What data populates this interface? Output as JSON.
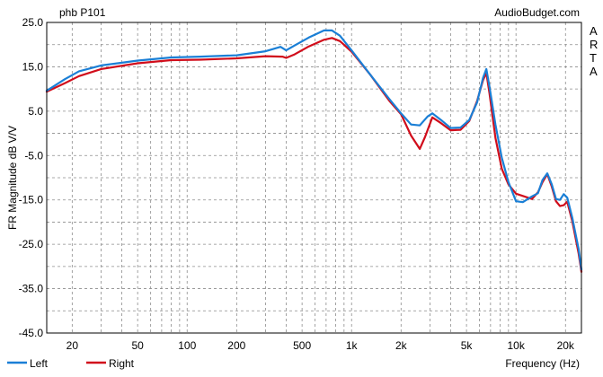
{
  "header": {
    "left": "phb P101",
    "right": "AudioBudget.com"
  },
  "side_label": "ARTA",
  "chart_data": {
    "type": "line",
    "title": "",
    "xlabel": "Frequency (Hz)",
    "ylabel": "FR Magnitude dB V/V",
    "xscale": "log",
    "xlim": [
      14,
      25000
    ],
    "ylim": [
      -45,
      25
    ],
    "grid": true,
    "legend": "bottom-left",
    "x_ticks": [
      {
        "v": 20,
        "label": "20"
      },
      {
        "v": 50,
        "label": "50"
      },
      {
        "v": 100,
        "label": "100"
      },
      {
        "v": 200,
        "label": "200"
      },
      {
        "v": 500,
        "label": "500"
      },
      {
        "v": 1000,
        "label": "1k"
      },
      {
        "v": 2000,
        "label": "2k"
      },
      {
        "v": 5000,
        "label": "5k"
      },
      {
        "v": 10000,
        "label": "10k"
      },
      {
        "v": 20000,
        "label": "20k"
      }
    ],
    "y_ticks": [
      {
        "v": 25,
        "label": "25.0"
      },
      {
        "v": 15,
        "label": "15.0"
      },
      {
        "v": 5,
        "label": "5.0"
      },
      {
        "v": -5,
        "label": "-5.0"
      },
      {
        "v": -15,
        "label": "-15.0"
      },
      {
        "v": -25,
        "label": "-25.0"
      },
      {
        "v": -35,
        "label": "-35.0"
      },
      {
        "v": -45,
        "label": "-45.0"
      }
    ],
    "series": [
      {
        "name": "Left",
        "color": "#1a7fd6",
        "points": [
          [
            14,
            9.6
          ],
          [
            18,
            12.2
          ],
          [
            22,
            14
          ],
          [
            30,
            15.3
          ],
          [
            50,
            16.4
          ],
          [
            80,
            17.1
          ],
          [
            120,
            17.3
          ],
          [
            200,
            17.6
          ],
          [
            300,
            18.5
          ],
          [
            370,
            19.5
          ],
          [
            400,
            18.7
          ],
          [
            450,
            19.8
          ],
          [
            550,
            21.6
          ],
          [
            680,
            23.2
          ],
          [
            760,
            23.2
          ],
          [
            850,
            22
          ],
          [
            1000,
            18.7
          ],
          [
            1300,
            13.2
          ],
          [
            1700,
            7.7
          ],
          [
            2000,
            4.5
          ],
          [
            2300,
            2
          ],
          [
            2600,
            1.8
          ],
          [
            2900,
            3.8
          ],
          [
            3100,
            4.5
          ],
          [
            3500,
            3
          ],
          [
            4000,
            1.2
          ],
          [
            4600,
            1.3
          ],
          [
            5200,
            3
          ],
          [
            5800,
            7
          ],
          [
            6300,
            12.5
          ],
          [
            6600,
            14.5
          ],
          [
            6900,
            10.5
          ],
          [
            7500,
            2
          ],
          [
            8200,
            -5.5
          ],
          [
            9000,
            -11
          ],
          [
            10000,
            -15.3
          ],
          [
            11000,
            -15.5
          ],
          [
            12500,
            -14.2
          ],
          [
            13600,
            -13.5
          ],
          [
            14500,
            -10.5
          ],
          [
            15500,
            -9
          ],
          [
            16500,
            -11.5
          ],
          [
            17500,
            -14.8
          ],
          [
            18500,
            -15
          ],
          [
            19500,
            -13.7
          ],
          [
            20500,
            -14.5
          ],
          [
            22000,
            -19
          ],
          [
            24000,
            -26
          ],
          [
            25000,
            -30.7
          ]
        ]
      },
      {
        "name": "Right",
        "color": "#d10d1b",
        "points": [
          [
            14,
            9.4
          ],
          [
            18,
            11.3
          ],
          [
            22,
            12.9
          ],
          [
            30,
            14.5
          ],
          [
            50,
            15.8
          ],
          [
            80,
            16.5
          ],
          [
            120,
            16.6
          ],
          [
            200,
            16.9
          ],
          [
            300,
            17.4
          ],
          [
            380,
            17.3
          ],
          [
            400,
            17
          ],
          [
            450,
            17.8
          ],
          [
            550,
            19.6
          ],
          [
            680,
            21.1
          ],
          [
            760,
            21.5
          ],
          [
            850,
            20.8
          ],
          [
            1000,
            18.4
          ],
          [
            1300,
            13.2
          ],
          [
            1700,
            7.3
          ],
          [
            2000,
            4.3
          ],
          [
            2300,
            -0.5
          ],
          [
            2600,
            -3.5
          ],
          [
            2800,
            -0.8
          ],
          [
            3100,
            3.6
          ],
          [
            3500,
            2.3
          ],
          [
            4000,
            0.7
          ],
          [
            4600,
            0.8
          ],
          [
            5200,
            2.8
          ],
          [
            5800,
            7.3
          ],
          [
            6300,
            12
          ],
          [
            6600,
            13.6
          ],
          [
            6900,
            9
          ],
          [
            7500,
            -1
          ],
          [
            8200,
            -8
          ],
          [
            9000,
            -11.5
          ],
          [
            10000,
            -13.6
          ],
          [
            11000,
            -14.1
          ],
          [
            12500,
            -14.8
          ],
          [
            13600,
            -13.3
          ],
          [
            14500,
            -11
          ],
          [
            15500,
            -9.2
          ],
          [
            16500,
            -12
          ],
          [
            17500,
            -15.3
          ],
          [
            18500,
            -16.4
          ],
          [
            19500,
            -16.2
          ],
          [
            20500,
            -15.4
          ],
          [
            22000,
            -19.8
          ],
          [
            24000,
            -27
          ],
          [
            25000,
            -31.2
          ]
        ]
      }
    ]
  }
}
